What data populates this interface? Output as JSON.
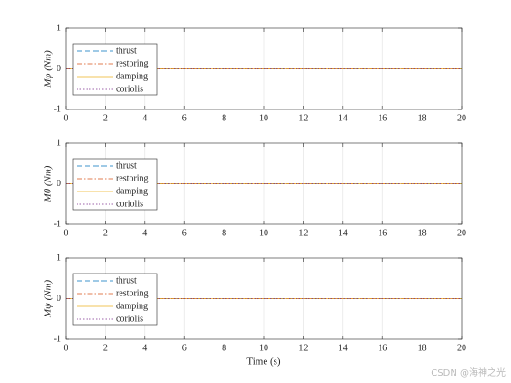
{
  "chart_data": [
    {
      "type": "line",
      "ylabel": "Mφ (Nm)",
      "x": [
        0,
        20
      ],
      "series": [
        {
          "name": "thrust",
          "color": "#0072BD",
          "dash": "dashed",
          "values": [
            0,
            0
          ]
        },
        {
          "name": "restoring",
          "color": "#D95319",
          "dash": "dashdot",
          "values": [
            0,
            0
          ]
        },
        {
          "name": "damping",
          "color": "#EDB120",
          "dash": "solid",
          "values": [
            0,
            0
          ]
        },
        {
          "name": "coriolis",
          "color": "#7E2F8E",
          "dash": "dotted",
          "values": [
            0,
            0
          ]
        }
      ],
      "xlim": [
        0,
        20
      ],
      "ylim": [
        -1,
        1
      ],
      "xticks": [
        0,
        2,
        4,
        6,
        8,
        10,
        12,
        14,
        16,
        18,
        20
      ],
      "yticks": [
        -1,
        0,
        1
      ],
      "grid": "x",
      "legend": "upper left"
    },
    {
      "type": "line",
      "ylabel": "Mθ (Nm)",
      "x": [
        0,
        20
      ],
      "series": [
        {
          "name": "thrust",
          "color": "#0072BD",
          "dash": "dashed",
          "values": [
            0,
            0
          ]
        },
        {
          "name": "restoring",
          "color": "#D95319",
          "dash": "dashdot",
          "values": [
            0,
            0
          ]
        },
        {
          "name": "damping",
          "color": "#EDB120",
          "dash": "solid",
          "values": [
            0,
            0
          ]
        },
        {
          "name": "coriolis",
          "color": "#7E2F8E",
          "dash": "dotted",
          "values": [
            0,
            0
          ]
        }
      ],
      "xlim": [
        0,
        20
      ],
      "ylim": [
        -1,
        1
      ],
      "xticks": [
        0,
        2,
        4,
        6,
        8,
        10,
        12,
        14,
        16,
        18,
        20
      ],
      "yticks": [
        -1,
        0,
        1
      ],
      "grid": "x",
      "legend": "upper left"
    },
    {
      "type": "line",
      "ylabel": "Mψ (Nm)",
      "xlabel": "Time (s)",
      "x": [
        0,
        20
      ],
      "series": [
        {
          "name": "thrust",
          "color": "#0072BD",
          "dash": "dashed",
          "values": [
            0,
            0
          ]
        },
        {
          "name": "restoring",
          "color": "#D95319",
          "dash": "dashdot",
          "values": [
            0,
            0
          ]
        },
        {
          "name": "damping",
          "color": "#EDB120",
          "dash": "solid",
          "values": [
            0,
            0
          ]
        },
        {
          "name": "coriolis",
          "color": "#7E2F8E",
          "dash": "dotted",
          "values": [
            0,
            0
          ]
        }
      ],
      "xlim": [
        0,
        20
      ],
      "ylim": [
        -1,
        1
      ],
      "xticks": [
        0,
        2,
        4,
        6,
        8,
        10,
        12,
        14,
        16,
        18,
        20
      ],
      "yticks": [
        -1,
        0,
        1
      ],
      "grid": "x",
      "legend": "upper left"
    }
  ],
  "watermark": "CSDN @海神之光"
}
